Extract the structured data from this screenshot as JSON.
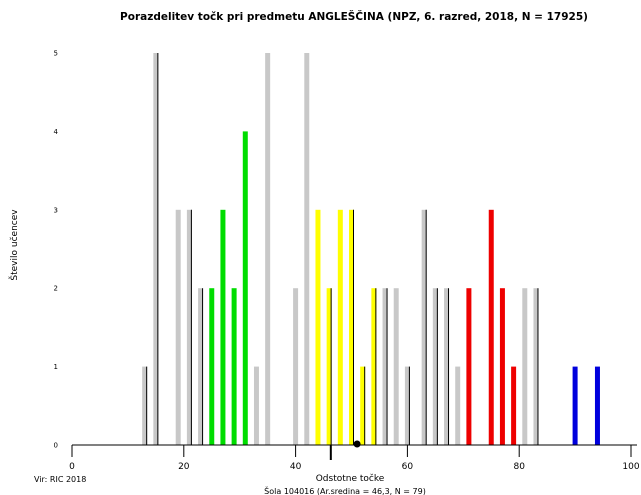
{
  "chart_data": {
    "type": "bar",
    "title": "Porazdelitev točk pri predmetu ANGLEŠČINA (NPZ, 6. razred, 2018, N = 17925)",
    "xlabel": "Odstotne točke",
    "ylabel": "Število učencev",
    "xlim": [
      0,
      100
    ],
    "ylim": [
      0,
      5
    ],
    "xticks": [
      "0",
      "20",
      "40",
      "60",
      "80",
      "100"
    ],
    "yticks": [
      "0",
      "1",
      "2",
      "3",
      "4",
      "5"
    ],
    "grid": false,
    "colors": {
      "grey": "#c8c8c8",
      "green": "#00dd00",
      "yellow": "#ffff00",
      "red": "#ee0000",
      "blue": "#0000dd",
      "outline": "#000000"
    },
    "bars": [
      {
        "x": 13,
        "y": 1,
        "c": "grey"
      },
      {
        "x": 15,
        "y": 5,
        "c": "grey"
      },
      {
        "x": 19,
        "y": 3,
        "c": "grey"
      },
      {
        "x": 21,
        "y": 3,
        "c": "grey"
      },
      {
        "x": 23,
        "y": 2,
        "c": "grey"
      },
      {
        "x": 25,
        "y": 2,
        "c": "green"
      },
      {
        "x": 27,
        "y": 3,
        "c": "green"
      },
      {
        "x": 29,
        "y": 2,
        "c": "green"
      },
      {
        "x": 31,
        "y": 4,
        "c": "green"
      },
      {
        "x": 33,
        "y": 1,
        "c": "grey"
      },
      {
        "x": 35,
        "y": 5,
        "c": "grey"
      },
      {
        "x": 40,
        "y": 2,
        "c": "grey"
      },
      {
        "x": 42,
        "y": 5,
        "c": "grey"
      },
      {
        "x": 44,
        "y": 3,
        "c": "yellow"
      },
      {
        "x": 46,
        "y": 2,
        "c": "yellow"
      },
      {
        "x": 48,
        "y": 3,
        "c": "yellow"
      },
      {
        "x": 50,
        "y": 3,
        "c": "yellow"
      },
      {
        "x": 52,
        "y": 1,
        "c": "yellow"
      },
      {
        "x": 54,
        "y": 2,
        "c": "yellow"
      },
      {
        "x": 56,
        "y": 2,
        "c": "grey"
      },
      {
        "x": 58,
        "y": 2,
        "c": "grey"
      },
      {
        "x": 60,
        "y": 1,
        "c": "grey"
      },
      {
        "x": 63,
        "y": 3,
        "c": "grey"
      },
      {
        "x": 65,
        "y": 2,
        "c": "grey"
      },
      {
        "x": 67,
        "y": 2,
        "c": "grey"
      },
      {
        "x": 69,
        "y": 1,
        "c": "grey"
      },
      {
        "x": 71,
        "y": 2,
        "c": "red"
      },
      {
        "x": 75,
        "y": 3,
        "c": "red"
      },
      {
        "x": 77,
        "y": 2,
        "c": "red"
      },
      {
        "x": 79,
        "y": 1,
        "c": "red"
      },
      {
        "x": 81,
        "y": 2,
        "c": "grey"
      },
      {
        "x": 83,
        "y": 2,
        "c": "grey"
      },
      {
        "x": 90,
        "y": 1,
        "c": "blue"
      },
      {
        "x": 94,
        "y": 1,
        "c": "blue"
      }
    ],
    "outlined_bars": [
      13,
      15,
      21,
      23,
      46,
      50,
      52,
      54,
      56,
      60,
      63,
      65,
      67,
      83
    ],
    "mean_marker_x": 46.3,
    "point_marker_x": 51,
    "source": "Vir: RIC 2018",
    "footer": "Šola 104016 (Ar.sredina = 46,3, N = 79)"
  }
}
